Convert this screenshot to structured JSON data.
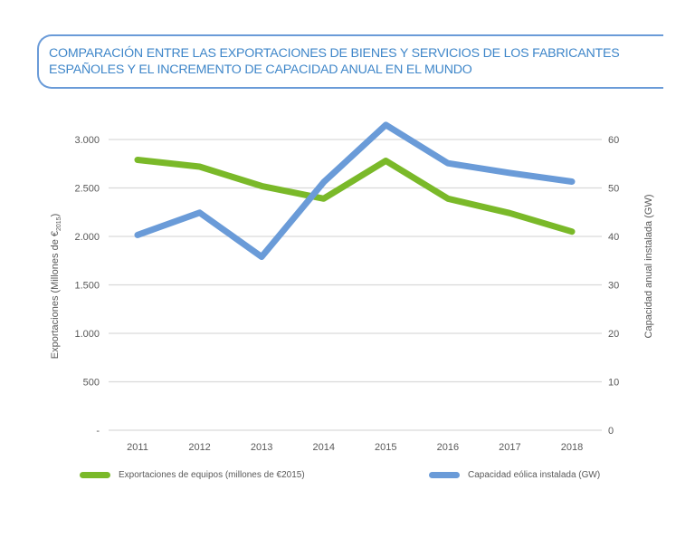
{
  "header": {
    "title_line1": "COMPARACIÓN ENTRE LAS EXPORTACIONES DE BIENES Y SERVICIOS DE LOS FABRICANTES",
    "title_line2": "ESPAÑOLES Y EL INCREMENTO DE CAPACIDAD ANUAL EN EL MUNDO"
  },
  "colors": {
    "title": "#3e86c9",
    "title_border": "#6a9bd8",
    "exports_series": "#7ab929",
    "capacity_series": "#6a9bd8",
    "grid": "#d9d9d9",
    "text": "#595959"
  },
  "chart_data": {
    "type": "line",
    "title": "COMPARACIÓN ENTRE LAS EXPORTACIONES DE BIENES Y SERVICIOS DE LOS FABRICANTES ESPAÑOLES Y EL INCREMENTO DE CAPACIDAD ANUAL EN EL MUNDO",
    "categories": [
      "2011",
      "2012",
      "2013",
      "2014",
      "2015",
      "2016",
      "2017",
      "2018"
    ],
    "xlabel": "",
    "ylabel_left": "Exportaciones (Millones de €2015)",
    "ylabel_left_main": "Exportaciones (Millones de €",
    "ylabel_left_sub": "2015",
    "ylabel_left_close": ")",
    "ylabel_right": "Capacidad anual instalada (GW)",
    "ylim_left": [
      0,
      3000
    ],
    "ylim_right": [
      0,
      60
    ],
    "yticks_left": [
      0,
      500,
      1000,
      1500,
      2000,
      2500,
      3000
    ],
    "ytick_labels_left": [
      "-",
      "500",
      "1.000",
      "1.500",
      "2.000",
      "2.500",
      "3.000"
    ],
    "yticks_right": [
      0,
      10,
      20,
      30,
      40,
      50,
      60
    ],
    "ytick_labels_right": [
      "0",
      "10",
      "20",
      "30",
      "40",
      "50",
      "60"
    ],
    "grid": true,
    "legend_position": "bottom",
    "series": [
      {
        "name": "Exportaciones de equipos (millones de €2015)",
        "axis": "left",
        "color": "#7ab929",
        "values": [
          2790,
          2720,
          2520,
          2390,
          2780,
          2390,
          2240,
          2050
        ]
      },
      {
        "name": "Capacidad eólica instalada (GW)",
        "axis": "right",
        "color": "#6a9bd8",
        "values": [
          40.3,
          44.9,
          35.8,
          51.2,
          63.0,
          55.1,
          53.1,
          51.3
        ]
      }
    ]
  }
}
